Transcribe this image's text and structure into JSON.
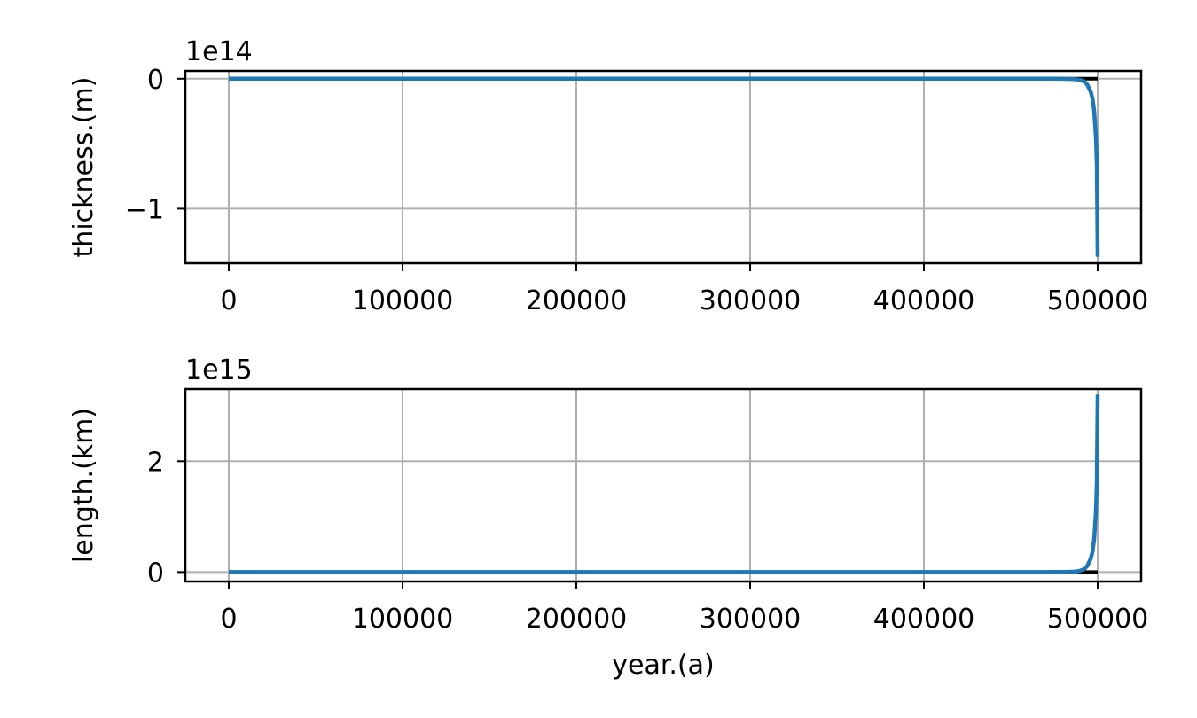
{
  "chart_data": [
    {
      "type": "line",
      "ylabel": "thickness.(m)",
      "offset_text": "1e14",
      "xlim": [
        -25000,
        525000
      ],
      "ylim": [
        -1.42,
        0.06
      ],
      "x_ticks": [
        0,
        100000,
        200000,
        300000,
        400000,
        500000
      ],
      "x_tick_labels": [
        "0",
        "100000",
        "200000",
        "300000",
        "400000",
        "500000"
      ],
      "y_ticks": [
        0,
        -1
      ],
      "y_tick_labels": [
        "0",
        "−1"
      ],
      "grid": true,
      "series": [
        {
          "color": "#000000",
          "x": [
            0,
            500000
          ],
          "y": [
            0,
            0
          ]
        },
        {
          "color": "#1f77b4",
          "x": [
            0,
            100000,
            200000,
            300000,
            400000,
            470000,
            480000,
            485000,
            488000,
            490000,
            492000,
            494000,
            496000,
            497000,
            498000,
            499000,
            499500,
            500000
          ],
          "y": [
            0,
            0,
            0,
            0,
            0,
            0,
            -0.0006,
            -0.002,
            -0.005,
            -0.01,
            -0.02,
            -0.045,
            -0.1,
            -0.15,
            -0.25,
            -0.45,
            -0.65,
            -1.37
          ]
        }
      ]
    },
    {
      "type": "line",
      "ylabel": "length.(km)",
      "xlabel": "year.(a)",
      "offset_text": "1e15",
      "xlim": [
        -25000,
        525000
      ],
      "ylim": [
        -0.17,
        3.3
      ],
      "x_ticks": [
        0,
        100000,
        200000,
        300000,
        400000,
        500000
      ],
      "x_tick_labels": [
        "0",
        "100000",
        "200000",
        "300000",
        "400000",
        "500000"
      ],
      "y_ticks": [
        0,
        2
      ],
      "y_tick_labels": [
        "0",
        "2"
      ],
      "grid": true,
      "series": [
        {
          "color": "#000000",
          "x": [
            0,
            500000
          ],
          "y": [
            0,
            0
          ]
        },
        {
          "color": "#1f77b4",
          "x": [
            0,
            100000,
            200000,
            300000,
            400000,
            470000,
            480000,
            485000,
            488000,
            490000,
            492000,
            494000,
            496000,
            497000,
            498000,
            499000,
            499500,
            500000
          ],
          "y": [
            0,
            0,
            0,
            0,
            0,
            0,
            0.0015,
            0.005,
            0.012,
            0.025,
            0.05,
            0.11,
            0.24,
            0.36,
            0.6,
            1.1,
            1.6,
            3.2
          ]
        }
      ]
    }
  ]
}
